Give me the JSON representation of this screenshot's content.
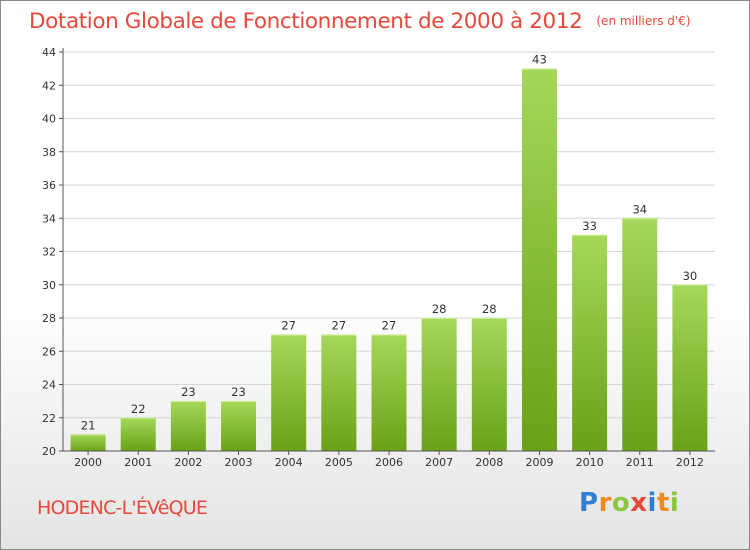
{
  "title": "Dotation Globale de Fonctionnement de 2000 à 2012",
  "subtitle": "(en milliers d'€)",
  "commune": "HODENC-L'ÉVêQUE",
  "logo": {
    "text": "Proxiti",
    "letters": [
      {
        "char": "P",
        "color": "#2f7fd0"
      },
      {
        "char": "r",
        "color": "#f08a1c"
      },
      {
        "char": "o",
        "color": "#8cc63f"
      },
      {
        "char": "x",
        "color": "#e8483a"
      },
      {
        "char": "i",
        "color": "#2f7fd0"
      },
      {
        "char": "t",
        "color": "#f08a1c"
      },
      {
        "char": "i",
        "color": "#8cc63f"
      }
    ]
  },
  "colors": {
    "accent": "#e8483a",
    "bar_top": "#a5d85a",
    "bar_bottom": "#6aa117",
    "grid": "#d6d6d6",
    "axis": "#555555"
  },
  "chart_data": {
    "type": "bar",
    "categories": [
      "2000",
      "2001",
      "2002",
      "2003",
      "2004",
      "2005",
      "2006",
      "2007",
      "2008",
      "2009",
      "2010",
      "2011",
      "2012"
    ],
    "values": [
      21,
      22,
      23,
      23,
      27,
      27,
      27,
      28,
      28,
      43,
      33,
      34,
      30
    ],
    "ylim": [
      20,
      44
    ],
    "yticks": [
      20,
      22,
      24,
      26,
      28,
      30,
      32,
      34,
      36,
      38,
      40,
      42,
      44
    ],
    "data_labels": true,
    "grid": true
  }
}
